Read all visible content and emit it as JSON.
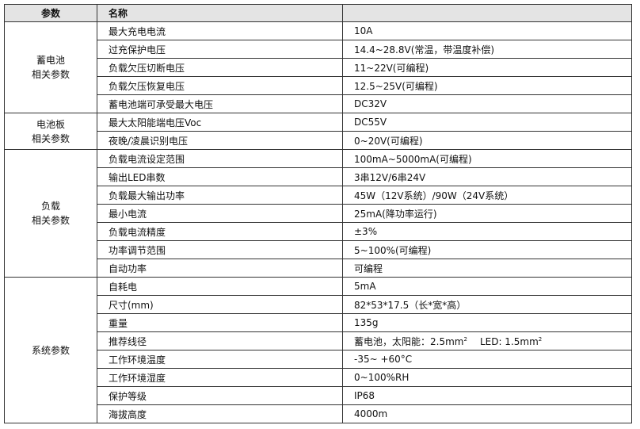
{
  "header": {
    "col1": "参数",
    "col2": "名称",
    "col3": ""
  },
  "groups": [
    {
      "label_line1": "蓄电池",
      "label_line2": "相关参数",
      "rows": [
        {
          "name": "最大充电电流",
          "value": "10A"
        },
        {
          "name": "过充保护电压",
          "value": "14.4~28.8V(常温，带温度补偿)"
        },
        {
          "name": "负载欠压切断电压",
          "value": "11~22V(可编程)"
        },
        {
          "name": "负载欠压恢复电压",
          "value": "12.5~25V(可编程)"
        },
        {
          "name": "蓄电池端可承受最大电压",
          "value": "DC32V"
        }
      ]
    },
    {
      "label_line1": "电池板",
      "label_line2": "相关参数",
      "rows": [
        {
          "name": "最大太阳能端电压Voc",
          "value": "DC55V"
        },
        {
          "name": "夜晚/凌晨识别电压",
          "value": "0~20V(可编程)"
        }
      ]
    },
    {
      "label_line1": "负载",
      "label_line2": "相关参数",
      "rows": [
        {
          "name": "负载电流设定范围",
          "value": "100mA~5000mA(可编程)"
        },
        {
          "name": "输出LED串数",
          "value": "3串12V/6串24V"
        },
        {
          "name": "负载最大输出功率",
          "value": "45W（12V系统）/90W（24V系统）"
        },
        {
          "name": "最小电流",
          "value": "25mA(降功率运行)"
        },
        {
          "name": "负载电流精度",
          "value": "±3%"
        },
        {
          "name": "功率调节范围",
          "value": "5~100%(可编程)"
        },
        {
          "name": "自动功率",
          "value": "可编程"
        }
      ]
    },
    {
      "label_line1": "系统参数",
      "label_line2": "",
      "rows": [
        {
          "name": "自耗电",
          "value": "5mA"
        },
        {
          "name": "尺寸(mm)",
          "value": "82*53*17.5（长*宽*高）"
        },
        {
          "name": "重量",
          "value": "135g"
        },
        {
          "name": "推荐线径",
          "value": "蓄电池，太阳能：2.5mm",
          "sup1": "2",
          "value2": "LED: 1.5mm",
          "sup2": "2"
        },
        {
          "name": "工作环境温度",
          "value": "-35~ +60°C"
        },
        {
          "name": "工作环境湿度",
          "value": "0~100%RH"
        },
        {
          "name": "保护等级",
          "value": "IP68"
        },
        {
          "name": "海拔高度",
          "value": "4000m"
        }
      ]
    }
  ]
}
